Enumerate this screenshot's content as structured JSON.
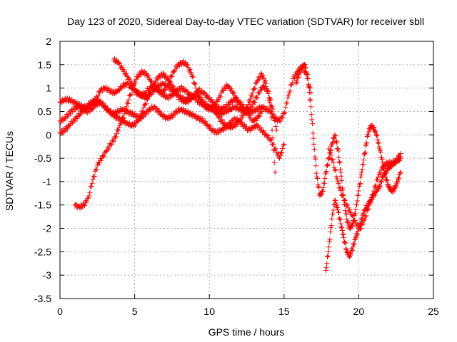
{
  "chart_data": {
    "type": "scatter",
    "title": "Day 123 of 2020, Sidereal Day-to-day VTEC variation (SDTVAR) for receiver sbll",
    "xlabel": "GPS time / hours",
    "ylabel": "SDTVAR / TECUs",
    "xlim": [
      0,
      25
    ],
    "ylim": [
      -3.5,
      2
    ],
    "xticks": [
      0,
      5,
      10,
      15,
      20,
      25
    ],
    "yticks": [
      -3.5,
      -3,
      -2.5,
      -2,
      -1.5,
      -1,
      -0.5,
      0,
      0.5,
      1,
      1.5,
      2
    ],
    "xtick_labels": [
      "0",
      "5",
      "10",
      "15",
      "20",
      "25"
    ],
    "ytick_labels": [
      "-3.5",
      "-3",
      "-2.5",
      "-2",
      "-1.5",
      "-1",
      "-0.5",
      "0",
      "0.5",
      "1",
      "1.5",
      "2"
    ],
    "grid": true,
    "marker": "plus",
    "color": "#ff0000",
    "series": [
      {
        "x": [
          0,
          0.3,
          0.6,
          0.9,
          1.2,
          1.5,
          1.8,
          2.1,
          2.4,
          2.7,
          3.0,
          3.3,
          3.6,
          3.9,
          4.2,
          4.5,
          4.8,
          5.1,
          5.4,
          5.7,
          6.0,
          6.3,
          6.6,
          6.9,
          7.2,
          7.5,
          7.8,
          8.1,
          8.4,
          8.7,
          9.0,
          9.3,
          9.6,
          9.9,
          10.2,
          10.5,
          10.8,
          11.1,
          11.4,
          11.7,
          12.0,
          12.3,
          12.6,
          12.9,
          13.2,
          13.5,
          13.8,
          14.1,
          14.4,
          14.7,
          15.0,
          15.3,
          15.6,
          15.9,
          16.2,
          16.5,
          16.8
        ],
        "y": [
          0.7,
          0.75,
          0.75,
          0.7,
          0.65,
          0.6,
          0.6,
          0.65,
          0.75,
          0.95,
          1.0,
          0.95,
          0.9,
          0.95,
          1.05,
          1.1,
          1.0,
          0.9,
          0.85,
          0.9,
          1.0,
          1.05,
          0.95,
          0.85,
          0.8,
          0.85,
          0.95,
          1.0,
          0.95,
          0.85,
          0.8,
          0.7,
          0.65,
          0.6,
          0.55,
          0.5,
          0.45,
          0.5,
          0.55,
          0.6,
          0.55,
          0.5,
          0.45,
          0.5,
          0.55,
          0.6,
          0.55,
          0.5,
          0.35,
          0.3,
          0.45,
          0.85,
          1.2,
          1.35,
          1.45,
          1.3,
          0.9
        ]
      },
      {
        "x": [
          0,
          0.3,
          0.6,
          0.9,
          1.2,
          1.5,
          1.8,
          2.1,
          2.4,
          2.7,
          3.0,
          3.3,
          3.6,
          3.9,
          4.2,
          4.5,
          4.8,
          5.1,
          5.4,
          5.7,
          6.0,
          6.3,
          6.6,
          6.9,
          7.2,
          7.5,
          7.8,
          8.1,
          8.4,
          8.7,
          9.0,
          9.3,
          9.6,
          9.9,
          10.2,
          10.5,
          10.8,
          11.1,
          11.4,
          11.7,
          12.0,
          12.3,
          12.6,
          12.9,
          13.2,
          13.5,
          13.8,
          14.1,
          14.4,
          14.7,
          15.0
        ],
        "y": [
          0.3,
          0.35,
          0.45,
          0.55,
          0.6,
          0.55,
          0.5,
          0.55,
          0.65,
          0.7,
          0.6,
          0.5,
          0.45,
          0.5,
          0.55,
          0.5,
          0.45,
          0.4,
          0.35,
          0.45,
          0.55,
          0.6,
          0.5,
          0.4,
          0.35,
          0.4,
          0.5,
          0.55,
          0.5,
          0.45,
          0.4,
          0.35,
          0.3,
          0.2,
          0.1,
          0.05,
          0.1,
          0.15,
          0.25,
          0.35,
          0.3,
          0.2,
          0.1,
          0.15,
          0.2,
          0.1,
          0.0,
          -0.1,
          -0.3,
          -0.5,
          -0.2
        ]
      },
      {
        "x": [
          0,
          0.3,
          0.6,
          0.9,
          1.2,
          1.5,
          1.8,
          2.1,
          2.4,
          2.7,
          3.0,
          3.3,
          3.6,
          3.9,
          4.2,
          4.5,
          4.8,
          5.1,
          5.4,
          5.7,
          6.0,
          6.3,
          6.6,
          6.9,
          7.2,
          7.5,
          7.8,
          8.1,
          8.4,
          8.7,
          9.0,
          9.3,
          9.6,
          9.9,
          10.2,
          10.5,
          10.8,
          11.1,
          11.4,
          11.7,
          12.0,
          12.3,
          12.6,
          12.9,
          13.2,
          13.5,
          13.8,
          14.1,
          14.4
        ],
        "y": [
          0.05,
          0.1,
          0.2,
          0.3,
          0.4,
          0.5,
          0.6,
          0.7,
          0.75,
          0.7,
          0.6,
          0.5,
          0.4,
          0.35,
          0.3,
          0.25,
          0.2,
          0.25,
          0.4,
          0.65,
          0.9,
          1.1,
          1.25,
          1.3,
          1.2,
          1.05,
          0.9,
          0.8,
          0.75,
          0.8,
          0.85,
          0.8,
          0.7,
          0.6,
          0.55,
          0.45,
          0.3,
          0.2,
          0.15,
          0.2,
          0.3,
          0.45,
          0.65,
          0.9,
          1.15,
          1.3,
          1.1,
          0.6,
          -0.8
        ]
      },
      {
        "x": [
          1.0,
          1.3,
          1.6,
          1.9,
          2.2,
          2.5,
          2.8,
          3.1,
          3.4,
          3.7,
          4.0,
          4.3,
          4.6,
          4.9,
          5.2,
          5.5,
          5.8,
          6.1,
          6.4,
          6.7,
          7.0,
          7.3,
          7.6,
          7.9,
          8.2,
          8.5,
          8.8,
          9.1,
          9.4,
          9.7,
          10.0,
          10.3,
          10.6,
          10.9,
          11.2,
          11.5,
          11.8,
          12.1,
          12.4,
          12.7,
          13.0,
          13.3,
          13.6,
          13.9,
          14.2,
          14.5
        ],
        "y": [
          -1.5,
          -1.55,
          -1.5,
          -1.35,
          -0.95,
          -0.65,
          -0.5,
          -0.35,
          -0.2,
          -0.05,
          0.2,
          0.45,
          0.75,
          1.05,
          1.25,
          1.35,
          1.3,
          1.15,
          1.0,
          0.9,
          0.95,
          1.15,
          1.35,
          1.5,
          1.55,
          1.5,
          1.3,
          1.0,
          0.75,
          0.6,
          0.55,
          0.6,
          0.75,
          0.95,
          1.05,
          0.95,
          0.8,
          0.6,
          0.5,
          0.55,
          0.7,
          0.9,
          1.05,
          0.95,
          0.6,
          0.1
        ]
      },
      {
        "x": [
          3.6,
          3.9,
          4.2,
          4.5,
          4.8,
          5.1,
          5.4,
          5.7,
          6.0,
          6.3,
          6.6,
          6.9,
          7.2,
          7.5,
          7.8,
          8.1,
          8.4,
          8.7,
          9.0,
          9.3,
          9.6,
          9.9,
          10.2,
          10.5,
          10.8,
          11.1,
          11.4,
          11.7,
          12.0,
          12.3,
          12.6,
          12.9,
          13.2,
          13.5
        ],
        "y": [
          1.6,
          1.55,
          1.4,
          1.25,
          1.1,
          0.95,
          0.85,
          0.8,
          0.85,
          0.95,
          1.05,
          1.1,
          1.05,
          0.95,
          0.85,
          0.75,
          0.7,
          0.75,
          0.85,
          0.95,
          0.9,
          0.8,
          0.7,
          0.6,
          0.55,
          0.6,
          0.7,
          0.75,
          0.7,
          0.6,
          0.45,
          0.3,
          0.35,
          0.5
        ]
      },
      {
        "x": [
          15.8,
          16.0,
          16.2,
          16.4,
          16.6,
          16.8,
          17.0,
          17.2,
          17.4,
          17.6,
          17.8,
          18.0,
          18.2,
          18.4,
          18.6,
          18.8,
          19.0,
          19.2,
          19.4,
          19.6,
          19.8,
          20.0,
          20.2,
          20.4,
          20.6,
          20.8,
          21.0,
          21.2,
          21.4,
          21.6,
          21.8,
          22.0,
          22.2,
          22.4,
          22.6,
          22.8
        ],
        "y": [
          1.1,
          1.3,
          1.45,
          1.5,
          1.2,
          0.6,
          -0.2,
          -0.9,
          -1.3,
          -1.2,
          -0.8,
          -0.5,
          -0.2,
          0.0,
          -0.3,
          -0.8,
          -1.4,
          -1.8,
          -2.0,
          -1.9,
          -1.6,
          -1.2,
          -0.8,
          -0.4,
          0.0,
          0.2,
          0.15,
          0.0,
          -0.3,
          -0.6,
          -0.9,
          -1.1,
          -1.2,
          -1.15,
          -1.0,
          -0.8
        ]
      },
      {
        "x": [
          17.8,
          18.0,
          18.2,
          18.4,
          18.6,
          18.8,
          19.0,
          19.2,
          19.4,
          19.6,
          19.8,
          20.0,
          20.2,
          20.4,
          20.6,
          20.8,
          21.0,
          21.2,
          21.4,
          21.6,
          21.8,
          22.0,
          22.2,
          22.4,
          22.6,
          22.8
        ],
        "y": [
          -2.9,
          -2.4,
          -1.8,
          -1.4,
          -1.6,
          -1.9,
          -2.2,
          -2.5,
          -2.6,
          -2.4,
          -2.2,
          -2.0,
          -1.8,
          -1.6,
          -1.5,
          -1.4,
          -1.3,
          -1.2,
          -1.1,
          -0.9,
          -0.8,
          -0.7,
          -0.65,
          -0.6,
          -0.55,
          -0.5
        ]
      },
      {
        "x": [
          18.0,
          18.3,
          18.6,
          18.9,
          19.2,
          19.5,
          19.8,
          20.1,
          20.4,
          20.7,
          21.0,
          21.3,
          21.6,
          21.9,
          22.2,
          22.5,
          22.8
        ],
        "y": [
          -0.3,
          -0.6,
          -1.0,
          -1.3,
          -1.5,
          -1.7,
          -1.9,
          -2.0,
          -1.8,
          -1.5,
          -1.2,
          -0.9,
          -0.7,
          -0.6,
          -0.6,
          -0.55,
          -0.4
        ]
      }
    ]
  }
}
